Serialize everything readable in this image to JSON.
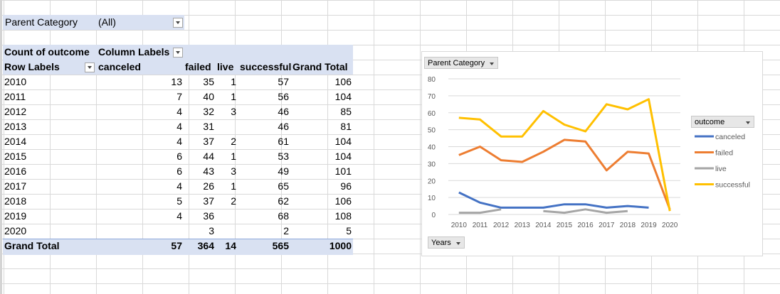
{
  "filter": {
    "label": "Parent Category",
    "value": "(All)"
  },
  "pivot": {
    "measure_label": "Count of outcome",
    "column_labels": "Column Labels",
    "row_labels": "Row Labels",
    "columns": [
      "canceled",
      "failed",
      "live",
      "successful",
      "Grand Total"
    ],
    "rows": [
      {
        "year": "2010",
        "canceled": "13",
        "failed": "35",
        "live": "1",
        "successful": "57",
        "total": "106"
      },
      {
        "year": "2011",
        "canceled": "7",
        "failed": "40",
        "live": "1",
        "successful": "56",
        "total": "104"
      },
      {
        "year": "2012",
        "canceled": "4",
        "failed": "32",
        "live": "3",
        "successful": "46",
        "total": "85"
      },
      {
        "year": "2013",
        "canceled": "4",
        "failed": "31",
        "live": "",
        "successful": "46",
        "total": "81"
      },
      {
        "year": "2014",
        "canceled": "4",
        "failed": "37",
        "live": "2",
        "successful": "61",
        "total": "104"
      },
      {
        "year": "2015",
        "canceled": "6",
        "failed": "44",
        "live": "1",
        "successful": "53",
        "total": "104"
      },
      {
        "year": "2016",
        "canceled": "6",
        "failed": "43",
        "live": "3",
        "successful": "49",
        "total": "101"
      },
      {
        "year": "2017",
        "canceled": "4",
        "failed": "26",
        "live": "1",
        "successful": "65",
        "total": "96"
      },
      {
        "year": "2018",
        "canceled": "5",
        "failed": "37",
        "live": "2",
        "successful": "62",
        "total": "106"
      },
      {
        "year": "2019",
        "canceled": "4",
        "failed": "36",
        "live": "",
        "successful": "68",
        "total": "108"
      },
      {
        "year": "2020",
        "canceled": "",
        "failed": "3",
        "live": "",
        "successful": "2",
        "total": "5"
      }
    ],
    "grand_total": {
      "label": "Grand Total",
      "canceled": "57",
      "failed": "364",
      "live": "14",
      "successful": "565",
      "total": "1000"
    }
  },
  "chart_buttons": {
    "filter": "Parent Category",
    "axis": "Years",
    "legend": "outcome"
  },
  "chart_data": {
    "type": "line",
    "title": "",
    "xlabel": "",
    "ylabel": "",
    "x": [
      "2010",
      "2011",
      "2012",
      "2013",
      "2014",
      "2015",
      "2016",
      "2017",
      "2018",
      "2019",
      "2020"
    ],
    "ylim": [
      0,
      80
    ],
    "yticks": [
      "0",
      "10",
      "20",
      "30",
      "40",
      "50",
      "60",
      "70",
      "80"
    ],
    "grid": true,
    "legend_position": "right",
    "series": [
      {
        "name": "canceled",
        "color": "#4472c4",
        "values": [
          13,
          7,
          4,
          4,
          4,
          6,
          6,
          4,
          5,
          4,
          null
        ]
      },
      {
        "name": "failed",
        "color": "#ed7d31",
        "values": [
          35,
          40,
          32,
          31,
          37,
          44,
          43,
          26,
          37,
          36,
          3
        ]
      },
      {
        "name": "live",
        "color": "#a5a5a5",
        "values": [
          1,
          1,
          3,
          null,
          2,
          1,
          3,
          1,
          2,
          null,
          null
        ]
      },
      {
        "name": "successful",
        "color": "#ffc000",
        "values": [
          57,
          56,
          46,
          46,
          61,
          53,
          49,
          65,
          62,
          68,
          2
        ]
      }
    ]
  }
}
